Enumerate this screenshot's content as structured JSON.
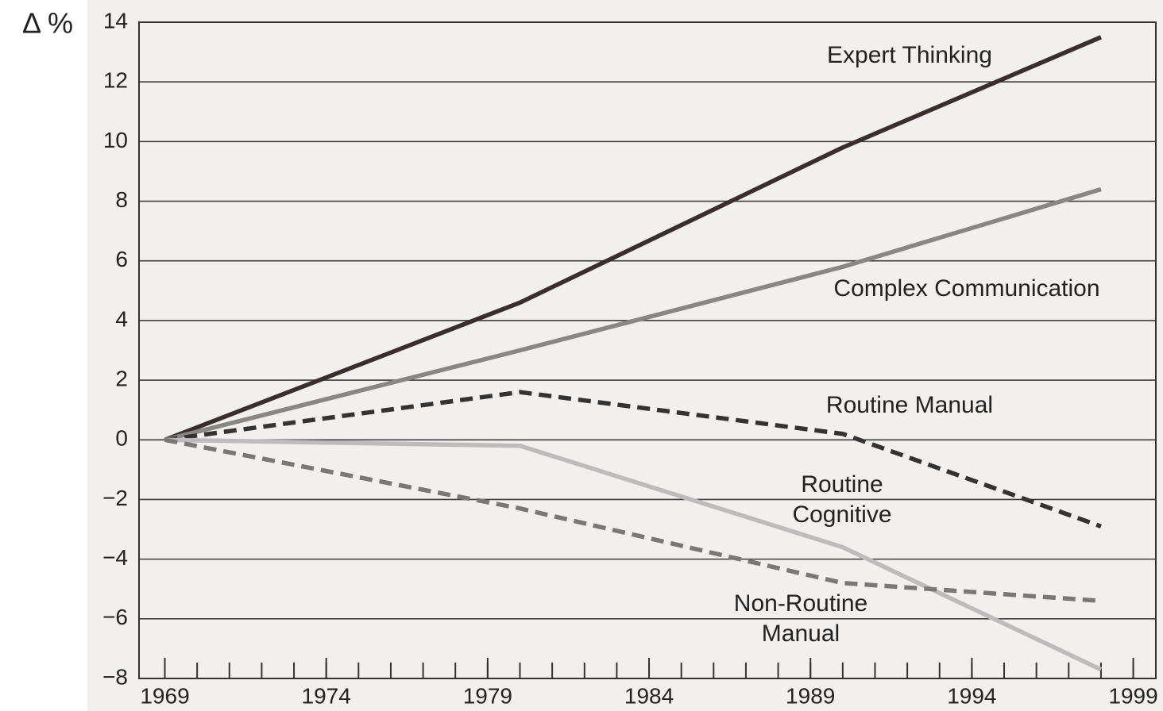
{
  "chart_data": {
    "type": "line",
    "y_label": "Δ %",
    "x": [
      1969,
      1980,
      1990,
      1998
    ],
    "series": [
      {
        "name": "Expert Thinking",
        "color": "#3a2e2c",
        "dash": false,
        "values": [
          0,
          4.6,
          9.8,
          13.5
        ]
      },
      {
        "name": "Complex Communication",
        "color": "#8a8686",
        "dash": false,
        "values": [
          0,
          3.0,
          5.8,
          8.4
        ]
      },
      {
        "name": "Routine Manual",
        "color": "#333333",
        "dash": true,
        "values": [
          0,
          1.6,
          0.2,
          -2.9
        ]
      },
      {
        "name": "Routine Cognitive",
        "color": "#bdbbbb",
        "dash": false,
        "values": [
          0,
          -0.2,
          -3.6,
          -7.7
        ]
      },
      {
        "name": "Non-Routine Manual",
        "color": "#7a7777",
        "dash": true,
        "values": [
          0,
          -2.3,
          -4.8,
          -5.4
        ]
      }
    ],
    "xlim": [
      1968.2,
      1999.7
    ],
    "xticks": [
      1969,
      1974,
      1979,
      1984,
      1989,
      1994,
      1999
    ],
    "xminorticks": [
      1969,
      1970,
      1971,
      1972,
      1973,
      1974,
      1975,
      1976,
      1977,
      1978,
      1979,
      1980,
      1981,
      1982,
      1983,
      1984,
      1985,
      1986,
      1987,
      1988,
      1989,
      1990,
      1991,
      1992,
      1993,
      1994,
      1995,
      1996,
      1997,
      1998,
      1999
    ],
    "ylim": [
      -8,
      14
    ],
    "yticks": [
      {
        "value": -8,
        "label": "−8"
      },
      {
        "value": -6,
        "label": "−6"
      },
      {
        "value": -4,
        "label": "−4"
      },
      {
        "value": -2,
        "label": "−2"
      },
      0,
      2,
      4,
      6,
      8,
      10,
      12,
      14
    ],
    "grid": true
  }
}
